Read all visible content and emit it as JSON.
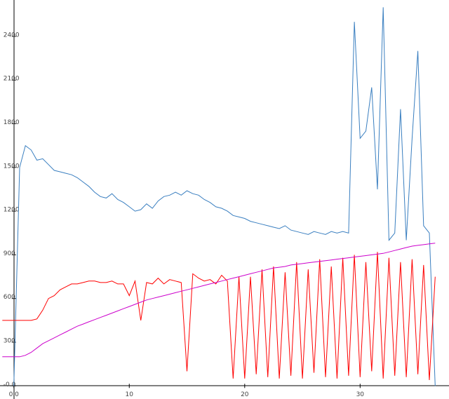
{
  "chart_data": {
    "type": "line",
    "x": [
      -1,
      -0.5,
      0,
      0.5,
      1,
      1.5,
      2,
      2.5,
      3,
      3.5,
      4,
      4.5,
      5,
      5.5,
      6,
      6.5,
      7,
      7.5,
      8,
      8.5,
      9,
      9.5,
      10,
      10.5,
      11,
      11.5,
      12,
      12.5,
      13,
      13.5,
      14,
      14.5,
      15,
      15.5,
      16,
      16.5,
      17,
      17.5,
      18,
      18.5,
      19,
      19.5,
      20,
      20.5,
      21,
      21.5,
      22,
      22.5,
      23,
      23.5,
      24,
      24.5,
      25,
      25.5,
      26,
      26.5,
      27,
      27.5,
      28,
      28.5,
      29,
      29.5,
      30,
      30.5,
      31,
      31.5,
      32,
      32.5,
      33,
      33.5,
      34,
      34.5,
      35,
      35.5,
      36,
      36.5
    ],
    "series": [
      {
        "color": "#3a7fc0",
        "values": [
          null,
          null,
          0,
          1500,
          1650,
          1620,
          1550,
          1560,
          1520,
          1480,
          1470,
          1460,
          1450,
          1430,
          1400,
          1370,
          1330,
          1300,
          1290,
          1320,
          1280,
          1260,
          1230,
          1200,
          1210,
          1250,
          1220,
          1270,
          1300,
          1310,
          1330,
          1310,
          1340,
          1320,
          1310,
          1280,
          1260,
          1230,
          1220,
          1200,
          1170,
          1160,
          1150,
          1130,
          1120,
          1110,
          1100,
          1090,
          1080,
          1100,
          1070,
          1060,
          1050,
          1040,
          1060,
          1050,
          1040,
          1060,
          1050,
          1060,
          1050,
          2500,
          1700,
          1750,
          2050,
          1350,
          2600,
          1000,
          1050,
          1900,
          1000,
          1700,
          2300,
          1100,
          1050,
          0
        ]
      },
      {
        "color": "#ff0000",
        "values": [
          450,
          450,
          450,
          450,
          450,
          450,
          460,
          520,
          600,
          620,
          660,
          680,
          700,
          700,
          710,
          720,
          720,
          710,
          710,
          720,
          700,
          700,
          620,
          720,
          450,
          710,
          700,
          740,
          700,
          730,
          720,
          710,
          100,
          770,
          740,
          720,
          730,
          700,
          760,
          720,
          50,
          750,
          50,
          750,
          80,
          800,
          60,
          820,
          50,
          780,
          70,
          850,
          50,
          800,
          90,
          870,
          60,
          820,
          50,
          880,
          70,
          900,
          60,
          850,
          100,
          920,
          50,
          880,
          70,
          850,
          60,
          870,
          80,
          830,
          40,
          750
        ]
      },
      {
        "color": "#cc00cc",
        "values": [
          200,
          200,
          200,
          200,
          210,
          230,
          260,
          290,
          310,
          330,
          350,
          370,
          390,
          410,
          425,
          440,
          455,
          470,
          485,
          500,
          515,
          530,
          545,
          560,
          575,
          590,
          600,
          610,
          620,
          630,
          640,
          650,
          660,
          670,
          680,
          690,
          700,
          710,
          720,
          730,
          740,
          750,
          760,
          770,
          780,
          790,
          800,
          810,
          815,
          820,
          830,
          835,
          840,
          845,
          850,
          855,
          860,
          865,
          870,
          875,
          880,
          885,
          890,
          895,
          900,
          905,
          910,
          920,
          930,
          940,
          950,
          960,
          965,
          970,
          975,
          980
        ]
      }
    ],
    "xlim": [
      -1.2,
      37.7
    ],
    "ylim": [
      -90,
      2650
    ],
    "xticks": [
      {
        "value": 0,
        "label": "0.0"
      },
      10,
      20,
      30
    ],
    "yticks": [
      {
        "value": 0,
        "label": "-0.0"
      },
      300,
      600,
      900,
      1200,
      1500,
      1800,
      2100,
      2400
    ]
  }
}
